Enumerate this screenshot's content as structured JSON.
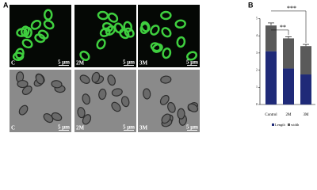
{
  "panel_a": {
    "label": "A",
    "rows": [
      [
        {
          "label": "C",
          "scale": "5 μm"
        },
        {
          "label": "2M",
          "scale": "5 μm"
        },
        {
          "label": "3M",
          "scale": "5 μm"
        }
      ],
      [
        {
          "label": "C",
          "scale": "5 μm"
        },
        {
          "label": "2M",
          "scale": "5 μm"
        },
        {
          "label": "3M",
          "scale": "5 μm"
        }
      ]
    ]
  },
  "panel_b": {
    "label": "B"
  },
  "chart_data": {
    "type": "stacked-bar",
    "categories": [
      "Control",
      "2M",
      "3M"
    ],
    "series": [
      {
        "name": "Length",
        "color": "#1f2a78",
        "values": [
          3.1,
          2.1,
          1.75
        ]
      },
      {
        "name": "width",
        "color": "#5a5a5a",
        "values": [
          1.5,
          1.75,
          1.65
        ],
        "errors": [
          0.15,
          0.1,
          0.1
        ]
      }
    ],
    "ylim": [
      0,
      5
    ],
    "yticks": [
      0,
      1,
      2,
      3,
      4,
      5
    ],
    "annotations": [
      "**",
      "***"
    ]
  }
}
